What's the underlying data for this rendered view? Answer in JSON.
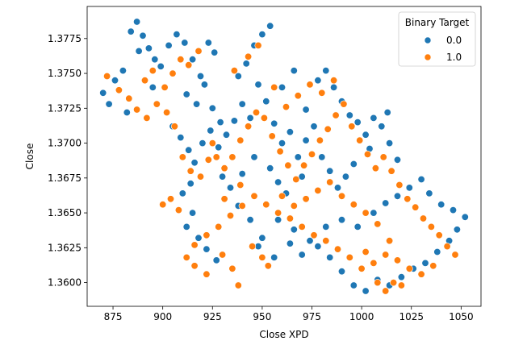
{
  "chart_data": {
    "type": "scatter",
    "xlabel": "Close XPD",
    "ylabel": "Close",
    "xlim": [
      862,
      1060
    ],
    "ylim": [
      1.3583,
      1.3798
    ],
    "x_ticks": [
      875,
      900,
      925,
      950,
      975,
      1000,
      1025,
      1050
    ],
    "x_tick_labels": [
      "875",
      "900",
      "925",
      "950",
      "975",
      "1000",
      "1025",
      "1050"
    ],
    "y_ticks": [
      1.36,
      1.3625,
      1.365,
      1.3675,
      1.37,
      1.3725,
      1.375,
      1.3775
    ],
    "y_tick_labels": [
      "1.3600",
      "1.3625",
      "1.3650",
      "1.3675",
      "1.3700",
      "1.3725",
      "1.3750",
      "1.3775"
    ],
    "grid": false,
    "legend": {
      "title": "Binary Target",
      "placement": "top-right",
      "entries": [
        {
          "label": "0.0",
          "color": "#1f77b4"
        },
        {
          "label": "1.0",
          "color": "#ff7f0e"
        }
      ]
    },
    "series": [
      {
        "label": "0.0",
        "color": "#1f77b4",
        "points": [
          [
            870,
            1.3736
          ],
          [
            873,
            1.3728
          ],
          [
            876,
            1.3745
          ],
          [
            880,
            1.3752
          ],
          [
            884,
            1.378
          ],
          [
            887,
            1.3787
          ],
          [
            890,
            1.3777
          ],
          [
            893,
            1.3768
          ],
          [
            896,
            1.376
          ],
          [
            882,
            1.3722
          ],
          [
            899,
            1.3755
          ],
          [
            903,
            1.377
          ],
          [
            907,
            1.3778
          ],
          [
            911,
            1.3772
          ],
          [
            915,
            1.376
          ],
          [
            919,
            1.3748
          ],
          [
            923,
            1.3772
          ],
          [
            926,
            1.3765
          ],
          [
            912,
            1.3735
          ],
          [
            917,
            1.3728
          ],
          [
            921,
            1.3742
          ],
          [
            925,
            1.3725
          ],
          [
            929,
            1.3715
          ],
          [
            905,
            1.3712
          ],
          [
            909,
            1.3704
          ],
          [
            913,
            1.3695
          ],
          [
            916,
            1.3686
          ],
          [
            920,
            1.37
          ],
          [
            924,
            1.3709
          ],
          [
            928,
            1.3697
          ],
          [
            932,
            1.3706
          ],
          [
            936,
            1.3716
          ],
          [
            940,
            1.3728
          ],
          [
            944,
            1.3718
          ],
          [
            948,
            1.3742
          ],
          [
            946,
            1.377
          ],
          [
            950,
            1.3778
          ],
          [
            954,
            1.3784
          ],
          [
            942,
            1.3757
          ],
          [
            938,
            1.3748
          ],
          [
            952,
            1.373
          ],
          [
            956,
            1.3714
          ],
          [
            960,
            1.37
          ],
          [
            964,
            1.3708
          ],
          [
            968,
            1.369
          ],
          [
            972,
            1.3702
          ],
          [
            976,
            1.3712
          ],
          [
            978,
            1.3745
          ],
          [
            982,
            1.3752
          ],
          [
            986,
            1.374
          ],
          [
            990,
            1.373
          ],
          [
            994,
            1.372
          ],
          [
            998,
            1.3715
          ],
          [
            1002,
            1.3706
          ],
          [
            1006,
            1.3718
          ],
          [
            1010,
            1.3712
          ],
          [
            1014,
            1.37
          ],
          [
            1018,
            1.3688
          ],
          [
            1013,
            1.3722
          ],
          [
            1004,
            1.3696
          ],
          [
            996,
            1.3685
          ],
          [
            992,
            1.3676
          ],
          [
            988,
            1.3668
          ],
          [
            984,
            1.368
          ],
          [
            980,
            1.369
          ],
          [
            970,
            1.3676
          ],
          [
            962,
            1.3664
          ],
          [
            958,
            1.3672
          ],
          [
            954,
            1.3682
          ],
          [
            946,
            1.369
          ],
          [
            940,
            1.3678
          ],
          [
            934,
            1.3668
          ],
          [
            930,
            1.3676
          ],
          [
            938,
            1.3655
          ],
          [
            944,
            1.3645
          ],
          [
            950,
            1.3632
          ],
          [
            958,
            1.3645
          ],
          [
            966,
            1.3638
          ],
          [
            974,
            1.363
          ],
          [
            982,
            1.364
          ],
          [
            990,
            1.3645
          ],
          [
            998,
            1.364
          ],
          [
            1006,
            1.365
          ],
          [
            1012,
            1.3657
          ],
          [
            1018,
            1.3662
          ],
          [
            1024,
            1.3668
          ],
          [
            1030,
            1.3674
          ],
          [
            1034,
            1.3664
          ],
          [
            1040,
            1.3656
          ],
          [
            1046,
            1.3652
          ],
          [
            1052,
            1.3647
          ],
          [
            1048,
            1.3638
          ],
          [
            1044,
            1.363
          ],
          [
            1038,
            1.3622
          ],
          [
            1032,
            1.3614
          ],
          [
            1026,
            1.361
          ],
          [
            1020,
            1.3604
          ],
          [
            1014,
            1.3598
          ],
          [
            1008,
            1.3602
          ],
          [
            1002,
            1.3594
          ],
          [
            996,
            1.3598
          ],
          [
            990,
            1.3608
          ],
          [
            984,
            1.3618
          ],
          [
            978,
            1.3626
          ],
          [
            970,
            1.362
          ],
          [
            964,
            1.3628
          ],
          [
            956,
            1.3618
          ],
          [
            948,
            1.3626
          ],
          [
            915,
            1.365
          ],
          [
            912,
            1.364
          ],
          [
            918,
            1.3632
          ],
          [
            922,
            1.3624
          ],
          [
            927,
            1.3616
          ],
          [
            910,
            1.3664
          ],
          [
            914,
            1.3671
          ],
          [
            960,
            1.374
          ],
          [
            966,
            1.3752
          ],
          [
            972,
            1.3724
          ],
          [
            888,
            1.3766
          ],
          [
            895,
            1.374
          ]
        ]
      },
      {
        "label": "1.0",
        "color": "#ff7f0e",
        "points": [
          [
            872,
            1.3748
          ],
          [
            878,
            1.3738
          ],
          [
            883,
            1.3732
          ],
          [
            887,
            1.3724
          ],
          [
            892,
            1.3718
          ],
          [
            897,
            1.3728
          ],
          [
            901,
            1.374
          ],
          [
            905,
            1.375
          ],
          [
            909,
            1.376
          ],
          [
            913,
            1.3756
          ],
          [
            918,
            1.3766
          ],
          [
            891,
            1.3745
          ],
          [
            895,
            1.3752
          ],
          [
            902,
            1.3722
          ],
          [
            906,
            1.3712
          ],
          [
            910,
            1.369
          ],
          [
            914,
            1.368
          ],
          [
            919,
            1.3676
          ],
          [
            923,
            1.3688
          ],
          [
            927,
            1.369
          ],
          [
            931,
            1.3682
          ],
          [
            935,
            1.369
          ],
          [
            939,
            1.3702
          ],
          [
            943,
            1.3712
          ],
          [
            947,
            1.3722
          ],
          [
            951,
            1.3718
          ],
          [
            955,
            1.3705
          ],
          [
            959,
            1.3694
          ],
          [
            963,
            1.3684
          ],
          [
            967,
            1.3674
          ],
          [
            971,
            1.3684
          ],
          [
            975,
            1.3692
          ],
          [
            979,
            1.3702
          ],
          [
            983,
            1.371
          ],
          [
            987,
            1.372
          ],
          [
            991,
            1.3728
          ],
          [
            995,
            1.3712
          ],
          [
            999,
            1.3702
          ],
          [
            1003,
            1.3692
          ],
          [
            1007,
            1.3682
          ],
          [
            1011,
            1.369
          ],
          [
            1015,
            1.368
          ],
          [
            1019,
            1.367
          ],
          [
            1023,
            1.366
          ],
          [
            1027,
            1.3654
          ],
          [
            1031,
            1.3646
          ],
          [
            1035,
            1.364
          ],
          [
            1039,
            1.3634
          ],
          [
            1043,
            1.3626
          ],
          [
            1047,
            1.362
          ],
          [
            1036,
            1.3612
          ],
          [
            1030,
            1.3606
          ],
          [
            1024,
            1.361
          ],
          [
            1018,
            1.3616
          ],
          [
            1012,
            1.362
          ],
          [
            1006,
            1.3614
          ],
          [
            1000,
            1.361
          ],
          [
            994,
            1.3618
          ],
          [
            988,
            1.3624
          ],
          [
            982,
            1.363
          ],
          [
            976,
            1.3634
          ],
          [
            970,
            1.364
          ],
          [
            964,
            1.3646
          ],
          [
            958,
            1.365
          ],
          [
            952,
            1.3656
          ],
          [
            946,
            1.3662
          ],
          [
            940,
            1.3655
          ],
          [
            934,
            1.3648
          ],
          [
            928,
            1.364
          ],
          [
            922,
            1.3634
          ],
          [
            916,
            1.3627
          ],
          [
            912,
            1.3618
          ],
          [
            916,
            1.3612
          ],
          [
            922,
            1.3606
          ],
          [
            930,
            1.362
          ],
          [
            935,
            1.361
          ],
          [
            938,
            1.3598
          ],
          [
            945,
            1.3626
          ],
          [
            950,
            1.3618
          ],
          [
            953,
            1.3612
          ],
          [
            900,
            1.3656
          ],
          [
            904,
            1.366
          ],
          [
            908,
            1.3652
          ],
          [
            960,
            1.3662
          ],
          [
            966,
            1.3655
          ],
          [
            972,
            1.366
          ],
          [
            978,
            1.3666
          ],
          [
            984,
            1.3672
          ],
          [
            990,
            1.3662
          ],
          [
            996,
            1.3656
          ],
          [
            1002,
            1.365
          ],
          [
            1008,
            1.3642
          ],
          [
            1014,
            1.363
          ],
          [
            1002,
            1.3622
          ],
          [
            1008,
            1.36
          ],
          [
            1012,
            1.3594
          ],
          [
            1016,
            1.36
          ],
          [
            1020,
            1.3598
          ],
          [
            956,
            1.374
          ],
          [
            962,
            1.3726
          ],
          [
            968,
            1.3734
          ],
          [
            974,
            1.3742
          ],
          [
            980,
            1.3736
          ],
          [
            986,
            1.3745
          ],
          [
            948,
            1.377
          ],
          [
            943,
            1.3762
          ],
          [
            936,
            1.3752
          ],
          [
            925,
            1.37
          ],
          [
            931,
            1.366
          ],
          [
            939,
            1.367
          ]
        ]
      }
    ]
  }
}
